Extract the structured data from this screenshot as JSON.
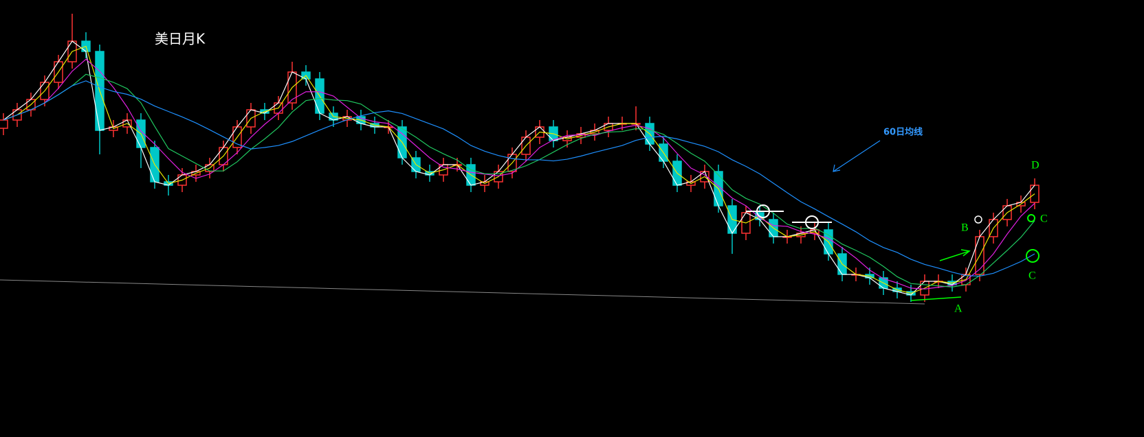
{
  "chart_data": {
    "type": "candlestick",
    "title": "美日月K",
    "background": "#000000",
    "up_color": "#ff3232",
    "down_color": "#00c8c8",
    "ylim": [
      0,
      637
    ],
    "open": [
      450,
      462,
      477,
      492,
      517,
      547,
      577,
      562,
      447,
      452,
      462,
      422,
      372,
      367,
      382,
      387,
      397,
      422,
      452,
      477,
      472,
      487,
      532,
      522,
      472,
      462,
      467,
      457,
      452,
      452,
      407,
      387,
      382,
      397,
      397,
      367,
      372,
      387,
      412,
      437,
      452,
      432,
      437,
      442,
      447,
      457,
      457,
      457,
      427,
      402,
      367,
      372,
      387,
      337,
      297,
      327,
      317,
      292,
      292,
      297,
      302,
      267,
      237,
      237,
      232,
      217,
      212,
      207,
      227,
      227,
      222,
      237,
      292,
      317,
      337,
      342
    ],
    "high": [
      472,
      487,
      502,
      527,
      557,
      617,
      590,
      572,
      462,
      472,
      472,
      432,
      382,
      392,
      397,
      407,
      432,
      462,
      487,
      487,
      497,
      547,
      542,
      532,
      482,
      477,
      477,
      467,
      462,
      462,
      417,
      397,
      407,
      407,
      407,
      382,
      397,
      422,
      447,
      462,
      462,
      447,
      452,
      457,
      467,
      467,
      482,
      467,
      437,
      412,
      382,
      397,
      397,
      347,
      337,
      337,
      327,
      302,
      307,
      312,
      312,
      277,
      247,
      247,
      242,
      227,
      222,
      237,
      237,
      237,
      247,
      302,
      327,
      347,
      352,
      377
    ],
    "low": [
      440,
      452,
      467,
      482,
      507,
      537,
      552,
      412,
      437,
      442,
      392,
      362,
      352,
      357,
      372,
      377,
      387,
      412,
      442,
      462,
      462,
      477,
      512,
      462,
      452,
      452,
      447,
      442,
      442,
      397,
      377,
      372,
      372,
      387,
      357,
      357,
      362,
      377,
      402,
      427,
      422,
      422,
      427,
      432,
      437,
      447,
      447,
      417,
      392,
      357,
      357,
      362,
      327,
      267,
      287,
      307,
      282,
      282,
      282,
      287,
      257,
      227,
      227,
      222,
      207,
      202,
      197,
      197,
      217,
      212,
      212,
      227,
      282,
      307,
      327,
      332
    ],
    "close": [
      462,
      477,
      492,
      517,
      547,
      577,
      562,
      447,
      452,
      462,
      422,
      372,
      367,
      382,
      387,
      397,
      422,
      452,
      477,
      472,
      487,
      532,
      522,
      472,
      462,
      467,
      457,
      452,
      452,
      407,
      387,
      382,
      397,
      397,
      367,
      372,
      387,
      412,
      437,
      452,
      432,
      437,
      442,
      447,
      457,
      457,
      457,
      427,
      402,
      367,
      372,
      387,
      337,
      297,
      327,
      317,
      292,
      292,
      297,
      302,
      267,
      237,
      237,
      232,
      217,
      212,
      207,
      227,
      227,
      222,
      237,
      292,
      317,
      337,
      342,
      367
    ],
    "moving_averages": [
      {
        "color": "#ffffff",
        "window": 1
      },
      {
        "color": "#e8e800",
        "window": 2
      },
      {
        "color": "#e020e0",
        "window": 4
      },
      {
        "color": "#20c860",
        "window": 6
      },
      {
        "color": "#1e90ff",
        "window": 12
      }
    ],
    "annotations": [
      {
        "text": "60日均线",
        "color": "#3399ff"
      },
      {
        "text": "A",
        "color": "#00ff00"
      },
      {
        "text": "B",
        "color": "#00ff00"
      },
      {
        "text": "C",
        "color": "#00ff00"
      },
      {
        "text": "C",
        "color": "#00ff00"
      },
      {
        "text": "D",
        "color": "#00ff00"
      }
    ]
  }
}
